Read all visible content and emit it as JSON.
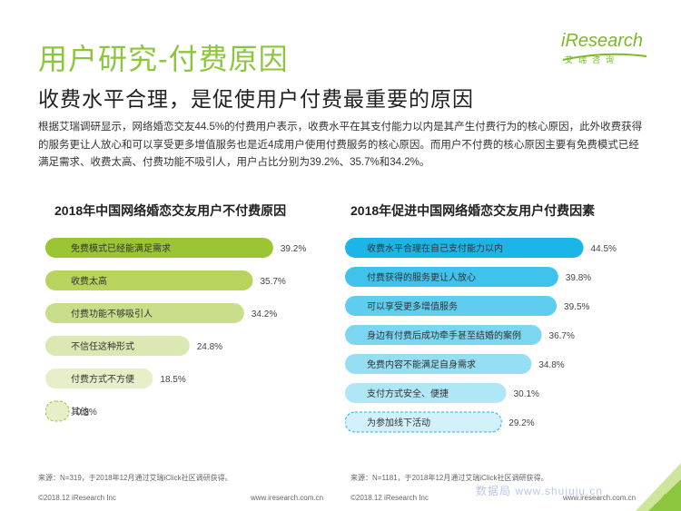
{
  "header": {
    "title": "用户研究-付费原因",
    "subtitle": "收费水平合理，是促使用户付费最重要的原因"
  },
  "logo": {
    "main": "iResearch",
    "sub": "艾瑞咨询"
  },
  "description": "根据艾瑞调研显示，网络婚恋交友44.5%的付费用户表示，收费水平在其支付能力以内是其产生付费行为的核心原因，此外收费获得的服务更让人放心和可以享受更多增值服务也是近4成用户使用付费服务的核心原因。而用户不付费的核心原因主要有免费模式已经满足需求、收费太高、付费功能不吸引人，用户占比分别为39.2%、35.7%和34.2%。",
  "chart_data": [
    {
      "type": "bar",
      "orientation": "horizontal",
      "title": "2018年中国网络婚恋交友用户不付费原因",
      "categories": [
        "免费模式已经能满足需求",
        "收费太高",
        "付费功能不够吸引人",
        "不信任这种形式",
        "付费方式不方便",
        "其他"
      ],
      "values": [
        39.2,
        35.7,
        34.2,
        24.8,
        18.5,
        0.3
      ],
      "value_labels": [
        "39.2%",
        "35.7%",
        "34.2%",
        "24.8%",
        "18.5%",
        "0.3%"
      ],
      "unit": "%",
      "colors": [
        "#9bc533",
        "#b8d45f",
        "#c8de8a",
        "#dbe8b2",
        "#e7efc9",
        "#e7efc9"
      ],
      "source": "来源：N=319，于2018年12月通过艾瑞iClick社区调研获得。"
    },
    {
      "type": "bar",
      "orientation": "horizontal",
      "title": "2018年促进中国网络婚恋交友用户付费因素",
      "categories": [
        "收费水平合理在自己支付能力以内",
        "付费获得的服务更让人放心",
        "可以享受更多增值服务",
        "身边有付费后成功牵手甚至结婚的案例",
        "免费内容不能满足自身需求",
        "支付方式安全、便捷",
        "为参加线下活动"
      ],
      "values": [
        44.5,
        39.8,
        39.5,
        36.7,
        34.8,
        30.1,
        29.2
      ],
      "value_labels": [
        "44.5%",
        "39.8%",
        "39.5%",
        "36.7%",
        "34.8%",
        "30.1%",
        "29.2%"
      ],
      "unit": "%",
      "colors": [
        "#1cb5e8",
        "#3fc2ec",
        "#5ecdef",
        "#7bd6f1",
        "#95def3",
        "#b0e7f6",
        "#d2f1fa"
      ],
      "source": "来源：N=1181，于2018年12月通过艾瑞iClick社区调研获得。"
    }
  ],
  "footer": {
    "left_copyright": "©2018.12 iResearch Inc",
    "left_website": "www.iresearch.com.cn",
    "right_copyright": "©2018.12 iResearch Inc",
    "right_website": "www.iresearch.com.cn",
    "watermark": "数据局 www.shujuju.cn",
    "page": "47"
  }
}
